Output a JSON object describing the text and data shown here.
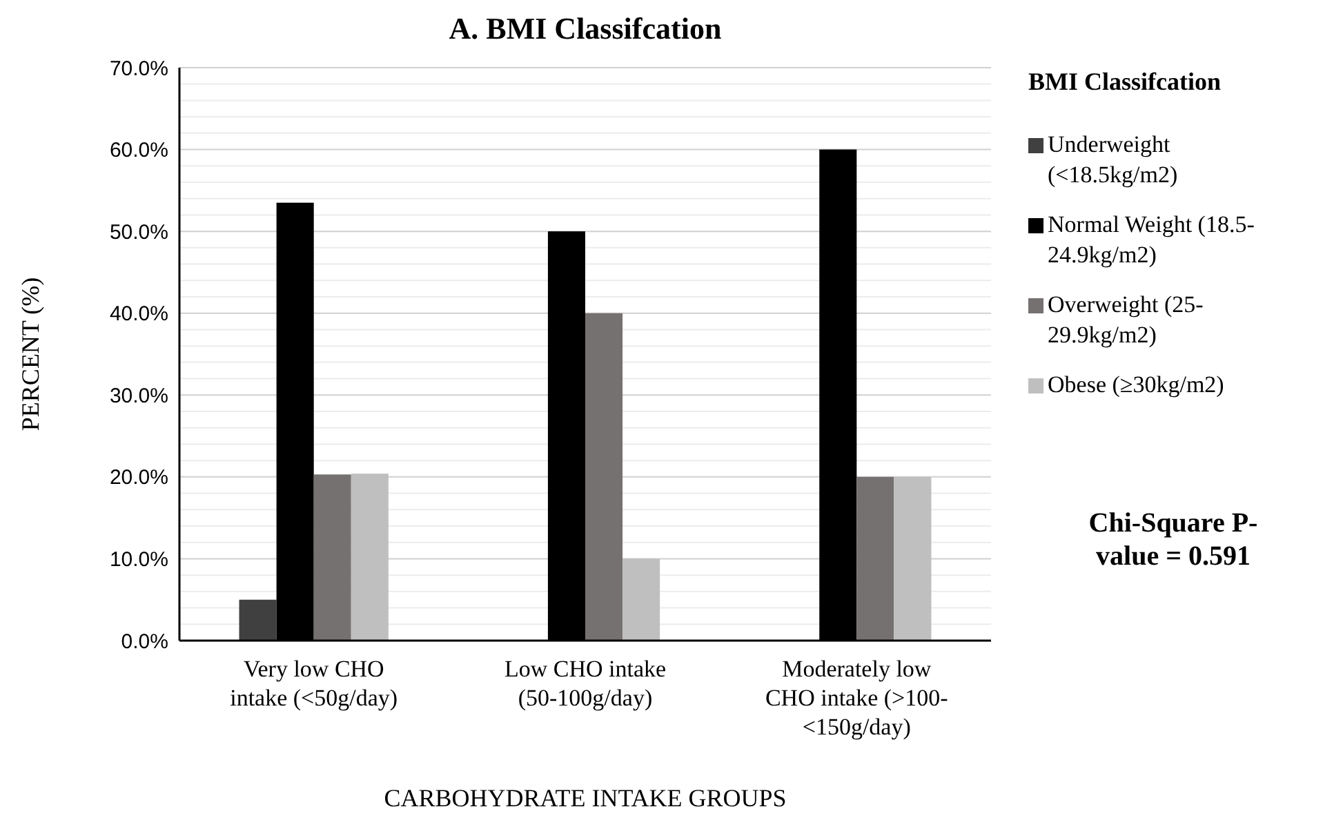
{
  "chart_data": {
    "type": "bar",
    "title": "A. BMI Classifcation",
    "xlabel": "CARBOHYDRATE INTAKE GROUPS",
    "ylabel": "PERCENT (%)",
    "legend_title": "BMI Classifcation",
    "categories": [
      "Very low CHO intake (<50g/day)",
      "Low CHO intake (50-100g/day)",
      "Moderately low CHO intake (>100-<150g/day)"
    ],
    "series": [
      {
        "name": "Underweight (<18.5kg/m2)",
        "color": "#404040",
        "values": [
          5.0,
          0,
          0
        ]
      },
      {
        "name": "Normal Weight (18.5-24.9kg/m2)",
        "color": "#000000",
        "values": [
          53.5,
          50.0,
          60.0
        ]
      },
      {
        "name": "Overweight (25-29.9kg/m2)",
        "color": "#767171",
        "values": [
          20.3,
          40.0,
          20.0
        ]
      },
      {
        "name": "Obese (≥30kg/m2)",
        "color": "#bfbfbf",
        "values": [
          20.4,
          10.0,
          20.0
        ]
      }
    ],
    "ylim": [
      0,
      70
    ],
    "yticks": [
      {
        "value": 0,
        "label": "0.0%"
      },
      {
        "value": 10,
        "label": "10.0%"
      },
      {
        "value": 20,
        "label": "20.0%"
      },
      {
        "value": 30,
        "label": "30.0%"
      },
      {
        "value": 40,
        "label": "40.0%"
      },
      {
        "value": 50,
        "label": "50.0%"
      },
      {
        "value": 60,
        "label": "60.0%"
      },
      {
        "value": 70,
        "label": "70.0%"
      }
    ],
    "grid": "y",
    "legend": "right",
    "annotations": [
      "Chi-Square P-value = 0.591"
    ]
  }
}
